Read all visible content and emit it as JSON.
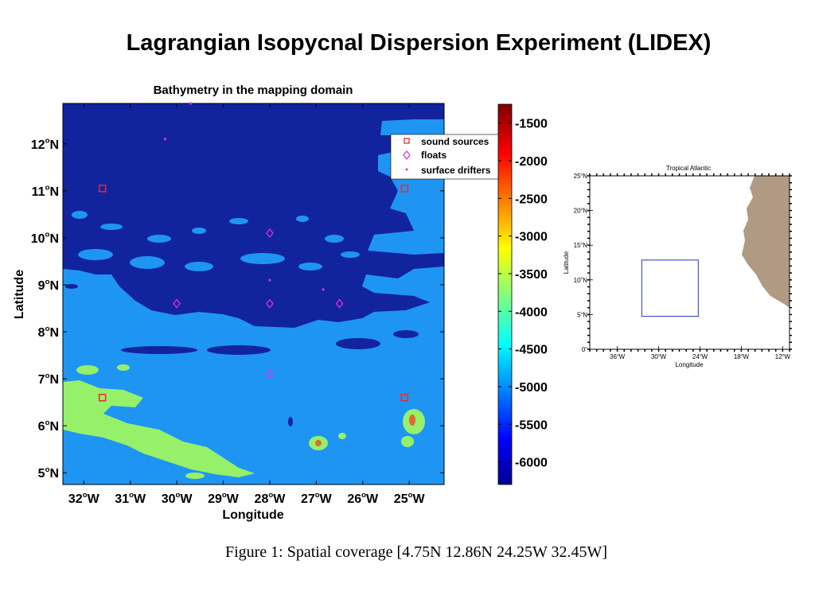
{
  "slide": {
    "title": "Lagrangian Isopycnal Dispersion Experiment (LIDEX)",
    "caption": "Figure 1: Spatial coverage [4.75N 12.86N 24.25W 32.45W]"
  },
  "main_map": {
    "title": "Bathymetry in the mapping domain",
    "xlabel": "Longitude",
    "ylabel": "Latitude",
    "lon_range": [
      -32.45,
      -24.25
    ],
    "lat_range": [
      4.75,
      12.86
    ],
    "lon_ticks": [
      {
        "value": -32,
        "label": "32",
        "hemi": "W"
      },
      {
        "value": -31,
        "label": "31",
        "hemi": "W"
      },
      {
        "value": -30,
        "label": "30",
        "hemi": "W"
      },
      {
        "value": -29,
        "label": "29",
        "hemi": "W"
      },
      {
        "value": -28,
        "label": "28",
        "hemi": "W"
      },
      {
        "value": -27,
        "label": "27",
        "hemi": "W"
      },
      {
        "value": -26,
        "label": "26",
        "hemi": "W"
      },
      {
        "value": -25,
        "label": "25",
        "hemi": "W"
      }
    ],
    "lat_ticks": [
      {
        "value": 5,
        "label": "5",
        "hemi": "N"
      },
      {
        "value": 6,
        "label": "6",
        "hemi": "N"
      },
      {
        "value": 7,
        "label": "7",
        "hemi": "N"
      },
      {
        "value": 8,
        "label": "8",
        "hemi": "N"
      },
      {
        "value": 9,
        "label": "9",
        "hemi": "N"
      },
      {
        "value": 10,
        "label": "10",
        "hemi": "N"
      },
      {
        "value": 11,
        "label": "11",
        "hemi": "N"
      },
      {
        "value": 12,
        "label": "12",
        "hemi": "N"
      }
    ],
    "legend": {
      "position": "top-right",
      "entries": [
        {
          "label": "sound sources",
          "marker": "square",
          "color": "#e03030"
        },
        {
          "label": "floats",
          "marker": "diamond",
          "color": "#e030e0"
        },
        {
          "label": "surface drifters",
          "marker": "dot",
          "color": "#e030e0"
        }
      ]
    },
    "sound_sources": [
      {
        "lon": -31.6,
        "lat": 11.05
      },
      {
        "lon": -25.1,
        "lat": 11.05
      },
      {
        "lon": -31.6,
        "lat": 6.6
      },
      {
        "lon": -25.1,
        "lat": 6.6
      }
    ],
    "floats": [
      {
        "lon": -28.0,
        "lat": 10.1
      },
      {
        "lon": -30.0,
        "lat": 8.6
      },
      {
        "lon": -28.0,
        "lat": 8.6
      },
      {
        "lon": -26.5,
        "lat": 8.6
      },
      {
        "lon": -28.0,
        "lat": 7.1
      }
    ],
    "surface_drifters": [
      {
        "lon": -29.7,
        "lat": 12.86
      },
      {
        "lon": -30.25,
        "lat": 12.1
      },
      {
        "lon": -28.0,
        "lat": 9.1
      },
      {
        "lon": -26.85,
        "lat": 8.9
      }
    ],
    "colors": {
      "deep": "#12239e",
      "mid": "#1e95f3",
      "shallow": "#96f06a",
      "seamount": "#e06a33"
    }
  },
  "colorbar": {
    "range": [
      -6300,
      -1250
    ],
    "ticks": [
      -1500,
      -2000,
      -2500,
      -3000,
      -3500,
      -4000,
      -4500,
      -5000,
      -5500,
      -6000
    ]
  },
  "inset_map": {
    "title": "Tropical Atlantic",
    "xlabel": "Longitude",
    "ylabel": "Latitude",
    "lon_range": [
      -40,
      -11
    ],
    "lat_range": [
      0,
      25
    ],
    "lon_ticks": [
      {
        "value": -36,
        "label": "36",
        "hemi": "W"
      },
      {
        "value": -30,
        "label": "30",
        "hemi": "W"
      },
      {
        "value": -24,
        "label": "24",
        "hemi": "W"
      },
      {
        "value": -18,
        "label": "18",
        "hemi": "W"
      },
      {
        "value": -12,
        "label": "12",
        "hemi": "W"
      }
    ],
    "lat_ticks": [
      {
        "value": 0,
        "label": "0",
        "hemi": ""
      },
      {
        "value": 5,
        "label": "5",
        "hemi": "N"
      },
      {
        "value": 10,
        "label": "10",
        "hemi": "N"
      },
      {
        "value": 15,
        "label": "15",
        "hemi": "N"
      },
      {
        "value": 20,
        "label": "20",
        "hemi": "N"
      },
      {
        "value": 25,
        "label": "25",
        "hemi": "N"
      }
    ],
    "domain_box": {
      "lon": [
        -32.45,
        -24.25
      ],
      "lat": [
        4.75,
        12.86
      ]
    },
    "land_color": "#b09a83",
    "box_color": "#2233cc"
  }
}
